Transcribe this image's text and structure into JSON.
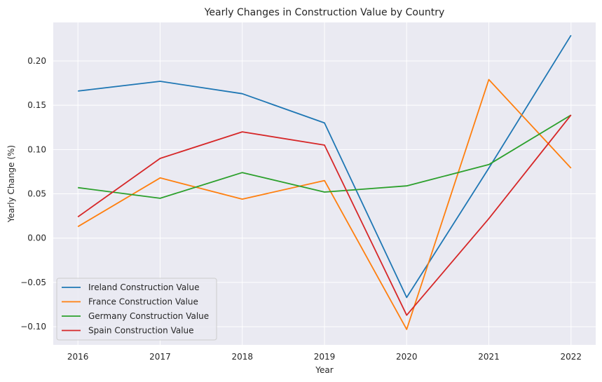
{
  "chart_data": {
    "type": "line",
    "title": "Yearly Changes in Construction Value by Country",
    "xlabel": "Year",
    "ylabel": "Yearly Change (%)",
    "x": [
      2016,
      2017,
      2018,
      2019,
      2020,
      2021,
      2022
    ],
    "x_tick_labels": [
      "2016",
      "2017",
      "2018",
      "2019",
      "2020",
      "2021",
      "2022"
    ],
    "y_ticks": [
      -0.1,
      -0.05,
      0.0,
      0.05,
      0.1,
      0.15,
      0.2
    ],
    "y_tick_labels": [
      "−0.10",
      "−0.05",
      "0.00",
      "0.05",
      "0.10",
      "0.15",
      "0.20"
    ],
    "xlim": [
      2015.7,
      2022.3
    ],
    "ylim": [
      -0.1205,
      0.2435
    ],
    "grid": true,
    "legend_position": "lower-left",
    "series": [
      {
        "name": "Ireland Construction Value",
        "color": "#1f77b4",
        "values": [
          0.166,
          0.177,
          0.163,
          0.13,
          -0.067,
          0.079,
          0.229
        ]
      },
      {
        "name": "France Construction Value",
        "color": "#ff7f0e",
        "values": [
          0.013,
          0.068,
          0.044,
          0.065,
          -0.103,
          0.179,
          0.079
        ]
      },
      {
        "name": "Germany Construction Value",
        "color": "#2ca02c",
        "values": [
          0.057,
          0.045,
          0.074,
          0.052,
          0.059,
          0.083,
          0.139
        ]
      },
      {
        "name": "Spain Construction Value",
        "color": "#d62728",
        "values": [
          0.024,
          0.09,
          0.12,
          0.105,
          -0.087,
          0.022,
          0.139
        ]
      }
    ]
  }
}
